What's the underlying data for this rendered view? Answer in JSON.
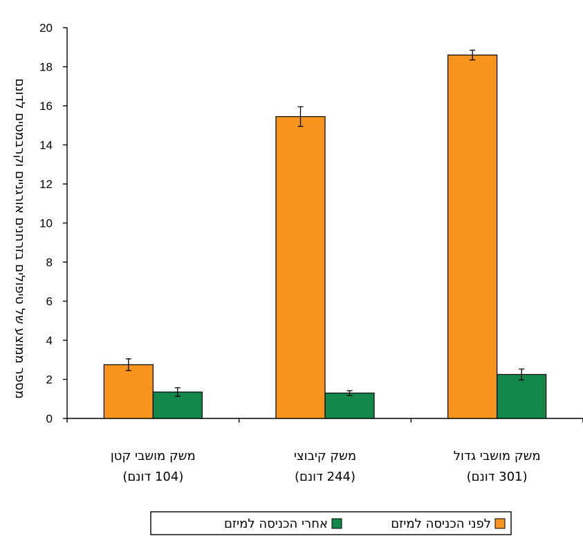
{
  "chart_data": {
    "type": "bar",
    "ylabel": "מספר ממוצע של טיפולים בזרחנים אורגניים וקרבמטים לדונם",
    "ylim": [
      0,
      20
    ],
    "yticks": [
      0,
      2,
      4,
      6,
      8,
      10,
      12,
      14,
      16,
      18,
      20
    ],
    "categories": [
      {
        "line1": "משק מושבי קטן",
        "line2": "(104 דונם)"
      },
      {
        "line1": "משק קיבוצי",
        "line2": "(244 דונם)"
      },
      {
        "line1": "משק מושבי גדול",
        "line2": "(301 דונם)"
      }
    ],
    "series": [
      {
        "name": "לפני הכניסה למיזם",
        "color": "#F7941D",
        "values": [
          2.75,
          15.45,
          18.6
        ],
        "errors": [
          0.3,
          0.5,
          0.25
        ]
      },
      {
        "name": "אחרי הכניסה למיזם",
        "color": "#13864A",
        "values": [
          1.35,
          1.3,
          2.25
        ],
        "errors": [
          0.22,
          0.12,
          0.28
        ]
      }
    ],
    "legend_position": "bottom"
  }
}
